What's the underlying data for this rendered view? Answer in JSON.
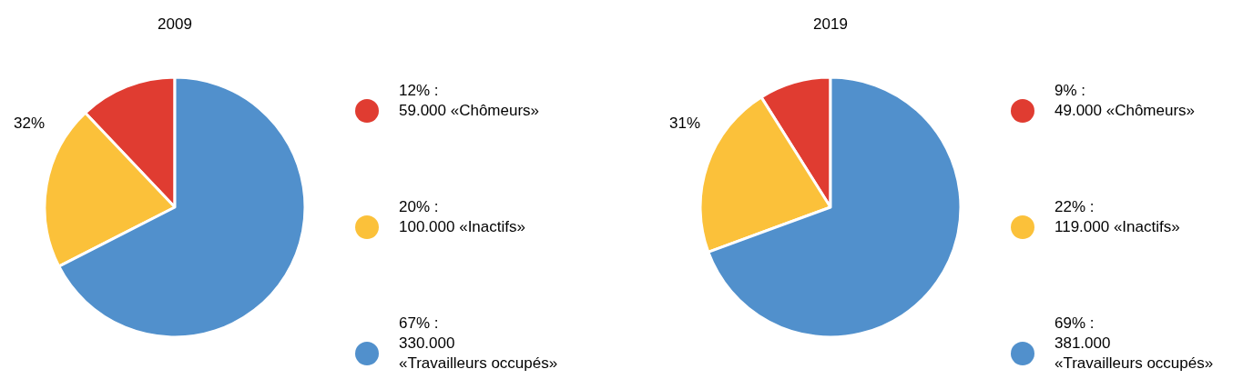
{
  "chart_data": [
    {
      "type": "pie",
      "title": "2009",
      "categories": [
        "12% :\n59.000 «Chômeurs»",
        "20% :\n100.000 «Inactifs»",
        "67% :\n330.000\n«Travailleurs occupés»"
      ],
      "values": [
        59000,
        100000,
        330000
      ],
      "colors": [
        "#e03c31",
        "#fbc13a",
        "#5190cc"
      ],
      "legend": "right",
      "annotations": [
        "32%"
      ]
    },
    {
      "type": "pie",
      "title": "2019",
      "categories": [
        "9% :\n49.000 «Chômeurs»",
        "22% :\n119.000 «Inactifs»",
        "69% :\n381.000\n«Travailleurs occupés»"
      ],
      "values": [
        49000,
        119000,
        381000
      ],
      "colors": [
        "#e03c31",
        "#fbc13a",
        "#5190cc"
      ],
      "legend": "right",
      "annotations": [
        "31%"
      ]
    }
  ]
}
